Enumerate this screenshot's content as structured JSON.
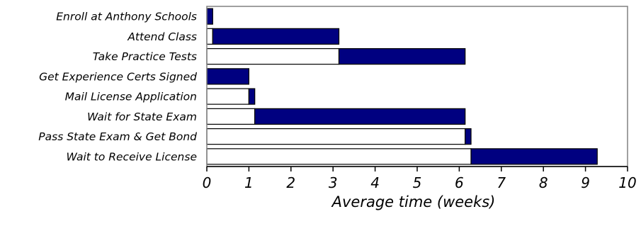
{
  "chart_data": {
    "type": "bar",
    "subtype": "stacked-horizontal-gantt",
    "categories": [
      "Enroll at Anthony Schools",
      "Attend Class",
      "Take Practice Tests",
      "Get Experience Certs Signed",
      "Mail License Application",
      "Wait for State Exam",
      "Pass State Exam & Get Bond",
      "Wait to Receive License"
    ],
    "series": [
      {
        "color": "#ffffff",
        "values": [
          0,
          0.14,
          3.14,
          0,
          1.0,
          1.14,
          6.14,
          6.28
        ]
      },
      {
        "color": "#000080",
        "values": [
          0.14,
          3.0,
          3.0,
          1.0,
          0.14,
          5.0,
          0.14,
          3.0
        ]
      }
    ],
    "xlabel": "Average time (weeks)",
    "xlim": [
      0,
      10
    ],
    "xticks": [
      "0",
      "1",
      "2",
      "3",
      "4",
      "5",
      "6",
      "7",
      "8",
      "9",
      "10"
    ],
    "grid": false
  }
}
